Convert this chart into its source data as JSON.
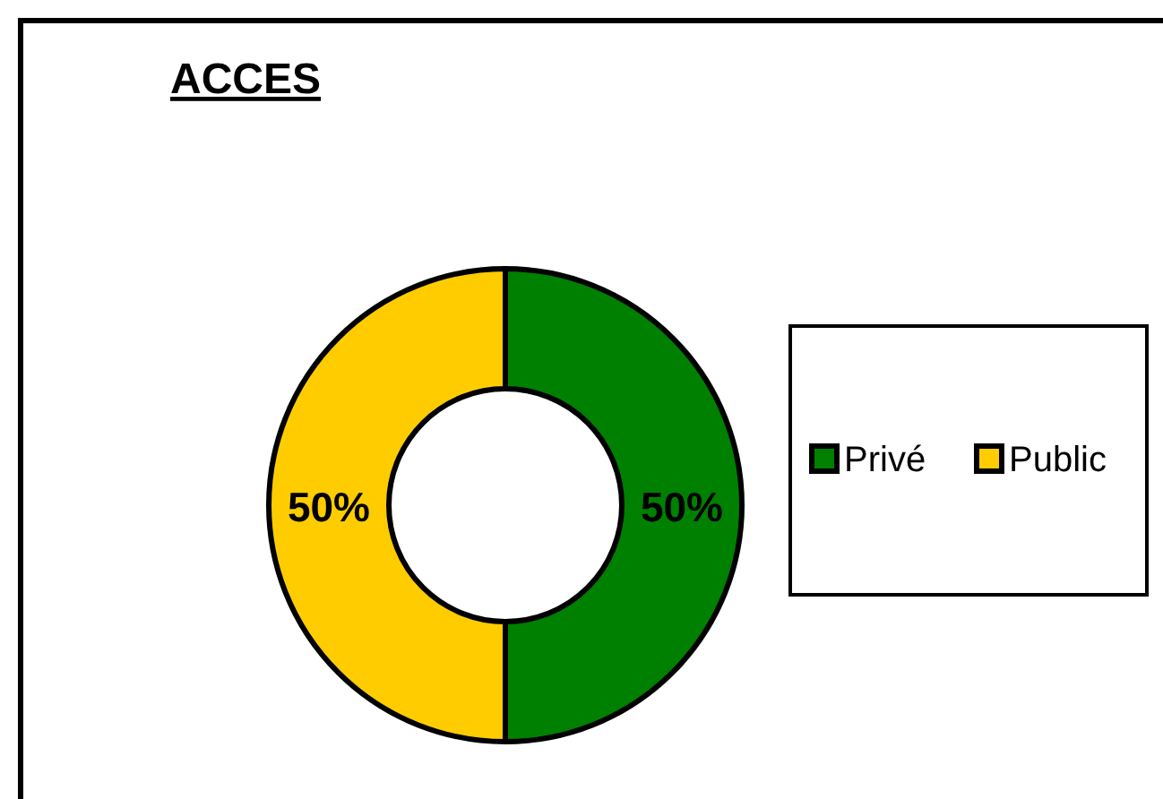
{
  "chart_data": {
    "type": "donut",
    "title": "ACCES",
    "categories": [
      "Privé",
      "Public"
    ],
    "values": [
      50,
      50
    ],
    "colors": [
      "#008000",
      "#ffcc00"
    ],
    "value_labels": [
      "50%",
      "50%"
    ],
    "legend": "right"
  }
}
